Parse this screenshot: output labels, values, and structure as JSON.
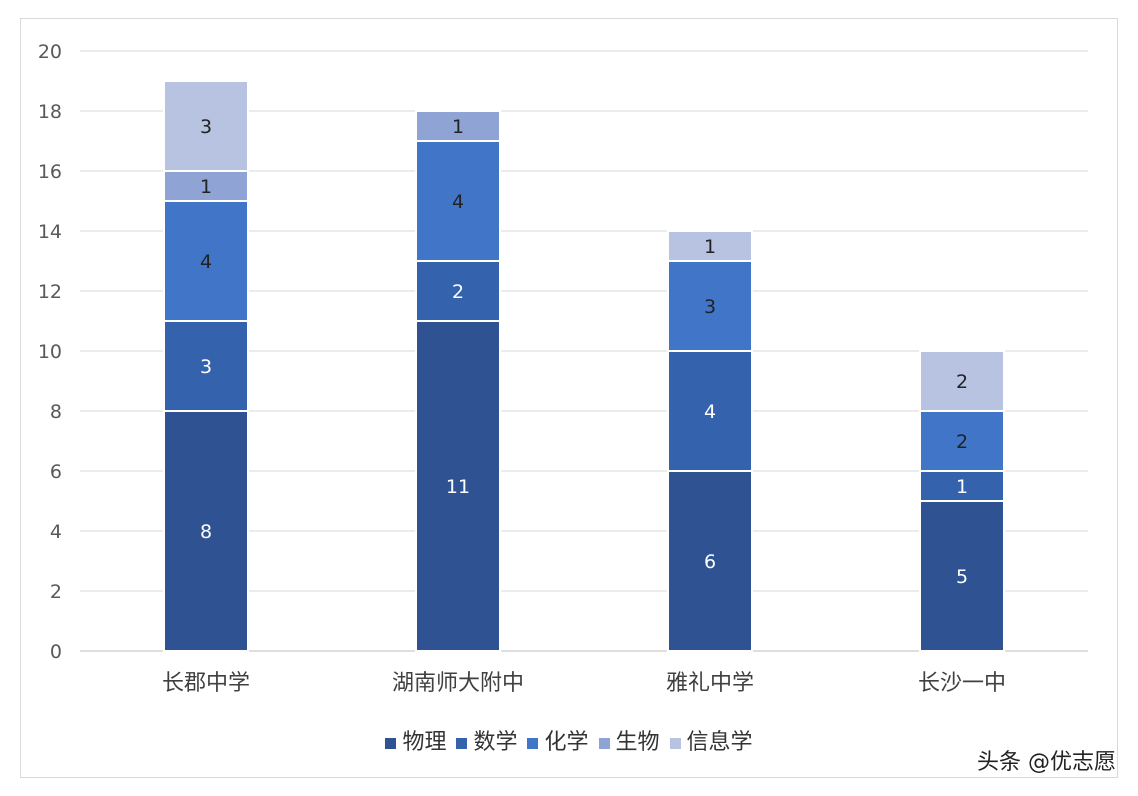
{
  "chart_data": {
    "type": "bar",
    "stacked": true,
    "categories": [
      "长郡中学",
      "湖南师大附中",
      "雅礼中学",
      "长沙一中"
    ],
    "series": [
      {
        "name": "物理",
        "values": [
          8,
          11,
          6,
          5
        ],
        "color": "#2f5392"
      },
      {
        "name": "数学",
        "values": [
          3,
          2,
          4,
          1
        ],
        "color": "#3462ad"
      },
      {
        "name": "化学",
        "values": [
          4,
          4,
          3,
          2
        ],
        "color": "#4175c7"
      },
      {
        "name": "生物",
        "values": [
          1,
          1,
          0,
          0
        ],
        "color": "#8fa3d4"
      },
      {
        "name": "信息学",
        "values": [
          3,
          0,
          1,
          2
        ],
        "color": "#b7c3e0"
      }
    ],
    "ylim": [
      0,
      20
    ],
    "yticks": [
      0,
      2,
      4,
      6,
      8,
      10,
      12,
      14,
      16,
      18,
      20
    ],
    "grid": true,
    "legend": "bottom"
  },
  "credit": "头条 @优志愿"
}
